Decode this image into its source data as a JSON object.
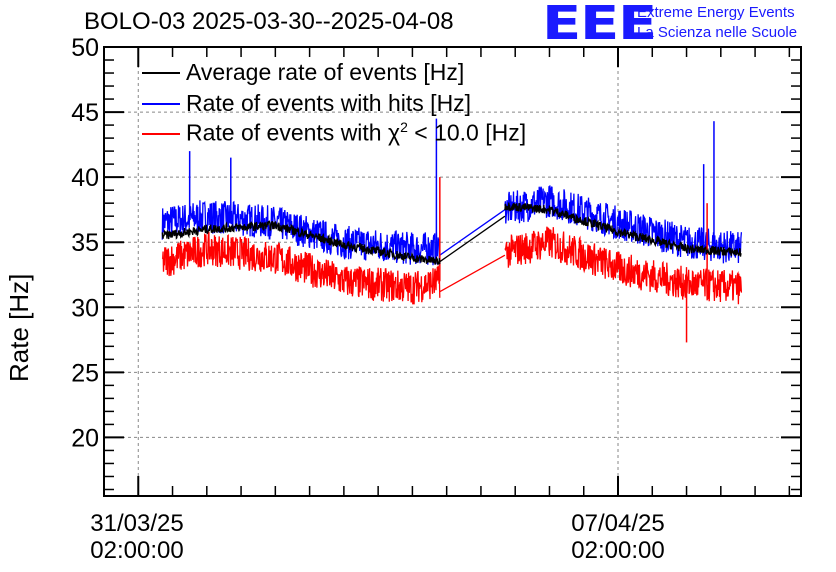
{
  "chart_data": {
    "type": "line",
    "title": "BOLO-03 2025-03-30--2025-04-08",
    "ylabel": "Rate [Hz]",
    "xlabel": "",
    "ylim": [
      15.5,
      50
    ],
    "yticks": [
      20,
      25,
      30,
      35,
      40,
      45,
      50
    ],
    "xticks": [
      {
        "date": "31/03/25",
        "time": "02:00:00",
        "day": 0
      },
      {
        "date": "07/04/25",
        "time": "02:00:00",
        "day": 7
      }
    ],
    "xrange_days": [
      -0.5,
      9.67
    ],
    "grid": true,
    "legend_placement": "top-left",
    "series": [
      {
        "name": "Average rate of events [Hz]",
        "color": "#000000",
        "segments": [
          {
            "x_days": [
              0.35,
              1.0,
              2.0,
              3.0,
              4.0,
              4.4
            ],
            "y": [
              35.5,
              36.0,
              36.3,
              34.8,
              33.8,
              33.5
            ]
          },
          {
            "x_days": [
              4.4,
              5.35
            ],
            "y": [
              33.5,
              37.0
            ]
          },
          {
            "x_days": [
              5.35,
              6.0,
              7.0,
              8.0,
              8.8
            ],
            "y": [
              37.8,
              37.5,
              35.8,
              34.5,
              34.2
            ]
          }
        ]
      },
      {
        "name": "Rate of events with hits [Hz]",
        "color": "#0000ff",
        "segments": [
          {
            "x_days": [
              0.35,
              1.0,
              2.0,
              3.0,
              4.0,
              4.4
            ],
            "y": [
              36.5,
              37.0,
              36.5,
              35.0,
              34.5,
              34.5
            ]
          },
          {
            "x_days": [
              4.4,
              5.35
            ],
            "y": [
              34.0,
              37.5
            ]
          },
          {
            "x_days": [
              5.35,
              6.0,
              7.0,
              8.0,
              8.8
            ],
            "y": [
              37.5,
              38.2,
              36.5,
              35.0,
              34.5
            ]
          }
        ],
        "spikes": [
          [
            0.75,
            42.0
          ],
          [
            1.35,
            41.5
          ],
          [
            4.35,
            44.5
          ],
          [
            8.4,
            44.3
          ],
          [
            8.25,
            41.0
          ]
        ]
      },
      {
        "name": "Rate of events with χ² < 10.0 [Hz]",
        "color": "#ff0000",
        "segments": [
          {
            "x_days": [
              0.35,
              1.0,
              2.0,
              3.0,
              4.0,
              4.4
            ],
            "y": [
              33.5,
              34.5,
              33.8,
              32.0,
              31.5,
              32.0
            ]
          },
          {
            "x_days": [
              4.4,
              5.35
            ],
            "y": [
              31.2,
              34.0
            ]
          },
          {
            "x_days": [
              5.35,
              6.0,
              7.0,
              8.0,
              8.8
            ],
            "y": [
              34.2,
              35.0,
              33.0,
              31.8,
              31.5
            ]
          }
        ],
        "spikes": [
          [
            4.4,
            40.0
          ],
          [
            8.0,
            27.3
          ],
          [
            8.3,
            38.0
          ]
        ]
      }
    ]
  },
  "legend": {
    "avg": "Average rate of events [Hz]",
    "hits": "Rate of events with hits [Hz]",
    "chi_prefix": "Rate of events with χ",
    "chi_sup": "2",
    "chi_suffix": " < 10.0 [Hz]"
  },
  "logo": {
    "mark": "EEE",
    "line1": "Extreme Energy Events",
    "line2": "La Scienza nelle Scuole",
    "color": "#1a1aff"
  }
}
